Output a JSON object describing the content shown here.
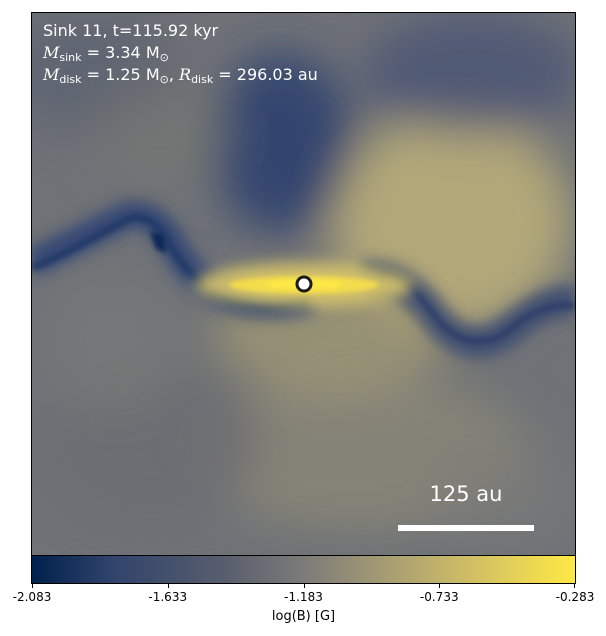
{
  "annotation": {
    "line1": "Sink 11, t=115.92 kyr",
    "m_sink_symbol": "M",
    "m_sink_sub": "sink",
    "m_sink_value": " = 3.34 M",
    "m_sink_unit_sub": "⊙",
    "m_disk_symbol": "M",
    "m_disk_sub": "disk",
    "m_disk_value": " = 1.25 M",
    "m_disk_unit_sub": "⊙",
    "r_disk_prefix": ", ",
    "r_disk_symbol": "R",
    "r_disk_sub": "disk",
    "r_disk_value": " = 296.03 au"
  },
  "scale_bar": {
    "label": "125 au"
  },
  "colorbar": {
    "label": "log(B) [G]",
    "min": -2.083,
    "max": -0.283,
    "ticks": [
      "-2.083",
      "-1.633",
      "-1.183",
      "-0.733",
      "-0.283"
    ],
    "colormap": "cividis",
    "colors": [
      "#00204d",
      "#575d6d",
      "#7c7b78",
      "#ffe945"
    ]
  }
}
